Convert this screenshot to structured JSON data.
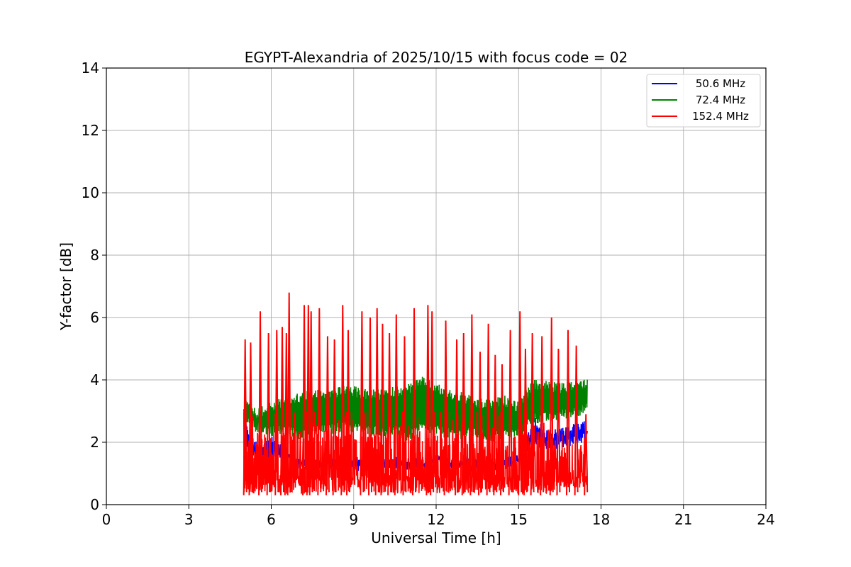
{
  "chart_data": {
    "type": "line",
    "title": "EGYPT-Alexandria of 2025/10/15 with focus code = 02",
    "xlabel": "Universal Time [h]",
    "ylabel": "Y-factor [dB]",
    "xlim": [
      0,
      24
    ],
    "ylim": [
      0,
      14
    ],
    "xticks": [
      0,
      3,
      6,
      9,
      12,
      15,
      18,
      21,
      24
    ],
    "yticks": [
      0,
      2,
      4,
      6,
      8,
      10,
      12,
      14
    ],
    "grid": true,
    "legend_position": "top-right",
    "time_range": [
      5.0,
      17.5
    ],
    "series": [
      {
        "name": "  50.6 MHz",
        "color": "#0000ff",
        "x": [
          5.0,
          5.1,
          5.2,
          5.5,
          6.0,
          6.5,
          7.0,
          8.0,
          9.0,
          10.0,
          11.0,
          12.0,
          13.0,
          14.0,
          15.0,
          15.6,
          16.0,
          16.5,
          17.0,
          17.5
        ],
        "y": [
          1.8,
          2.8,
          2.4,
          2.0,
          2.2,
          1.9,
          1.5,
          1.4,
          1.4,
          1.5,
          1.4,
          1.6,
          1.4,
          1.4,
          1.6,
          2.8,
          2.4,
          2.5,
          2.6,
          2.7
        ],
        "y_min": [
          1.3,
          1.6,
          1.5,
          1.4,
          1.4,
          1.3,
          1.2,
          1.2,
          1.2,
          1.2,
          1.2,
          1.2,
          1.2,
          1.2,
          1.3,
          1.9,
          1.7,
          1.8,
          1.9,
          2.0
        ]
      },
      {
        "name": "  72.4 MHz",
        "color": "#008000",
        "x": [
          5.0,
          5.5,
          6.0,
          6.5,
          7.0,
          7.5,
          8.0,
          8.5,
          9.0,
          9.5,
          10.0,
          10.5,
          11.0,
          11.5,
          12.0,
          12.5,
          13.0,
          13.5,
          14.0,
          14.5,
          15.0,
          15.5,
          16.0,
          16.5,
          17.0,
          17.5
        ],
        "y": [
          3.4,
          3.1,
          3.3,
          3.5,
          3.6,
          3.7,
          3.7,
          3.8,
          3.8,
          3.7,
          3.7,
          3.8,
          3.9,
          4.1,
          3.9,
          3.7,
          3.6,
          3.4,
          3.4,
          3.5,
          3.3,
          4.0,
          4.0,
          3.9,
          4.0,
          4.1
        ],
        "y_min": [
          2.5,
          2.3,
          2.2,
          2.2,
          2.1,
          2.2,
          2.2,
          2.3,
          2.3,
          2.2,
          2.2,
          2.2,
          2.0,
          2.3,
          2.2,
          2.1,
          2.1,
          2.1,
          2.0,
          2.1,
          2.1,
          2.6,
          2.6,
          2.7,
          2.8,
          2.9
        ]
      },
      {
        "name": "152.4 MHz",
        "color": "#ff0000",
        "baseline": 0.35,
        "spike_x": [
          5.05,
          5.25,
          5.6,
          5.9,
          6.2,
          6.4,
          6.55,
          6.65,
          7.2,
          7.35,
          7.45,
          7.75,
          8.05,
          8.3,
          8.6,
          8.8,
          9.3,
          9.6,
          9.85,
          10.05,
          10.3,
          10.55,
          10.85,
          11.2,
          11.7,
          11.85,
          12.35,
          12.75,
          13.0,
          13.3,
          13.6,
          13.9,
          14.15,
          14.4,
          14.7,
          15.05,
          15.25,
          15.5,
          15.85,
          16.2,
          16.45,
          16.8,
          17.1,
          17.45
        ],
        "spike_y": [
          5.3,
          5.2,
          6.2,
          5.5,
          5.6,
          5.7,
          5.5,
          6.8,
          6.4,
          6.4,
          6.2,
          6.3,
          5.4,
          5.3,
          6.4,
          5.6,
          6.2,
          6.0,
          6.3,
          5.8,
          5.5,
          6.1,
          5.4,
          6.3,
          6.4,
          6.2,
          5.9,
          5.3,
          5.5,
          6.1,
          4.9,
          5.8,
          4.8,
          4.5,
          5.6,
          6.2,
          5.0,
          5.5,
          5.4,
          6.0,
          5.0,
          5.6,
          5.1,
          2.9
        ]
      }
    ]
  }
}
